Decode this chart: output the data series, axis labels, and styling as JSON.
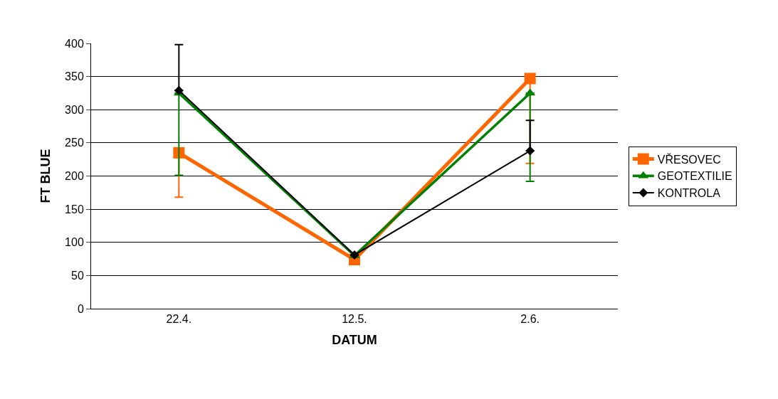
{
  "chart_data": {
    "type": "line",
    "xlabel": "DATUM",
    "ylabel": "FT BLUE",
    "categories": [
      "22.4.",
      "12.5.",
      "2.6."
    ],
    "series": [
      {
        "name": "VŘESOVEC",
        "color": "#ff6600",
        "marker": "square",
        "values": [
          235,
          74,
          347
        ],
        "errors": [
          [
            168,
            235
          ],
          null,
          [
            219,
            347
          ]
        ]
      },
      {
        "name": "GEOTEXTILIE",
        "color": "#008000",
        "marker": "triangle",
        "values": [
          325,
          80,
          325
        ],
        "errors": [
          [
            201,
            325
          ],
          null,
          [
            192,
            325
          ]
        ]
      },
      {
        "name": "KONTROLA",
        "color": "#000000",
        "marker": "diamond",
        "values": [
          329,
          81,
          238
        ],
        "errors": [
          [
            329,
            398
          ],
          null,
          [
            238,
            284
          ]
        ]
      }
    ],
    "ylim": [
      0,
      400
    ],
    "yticks": [
      0,
      50,
      100,
      150,
      200,
      250,
      300,
      350,
      400
    ],
    "grid": "y",
    "legend": "right"
  }
}
